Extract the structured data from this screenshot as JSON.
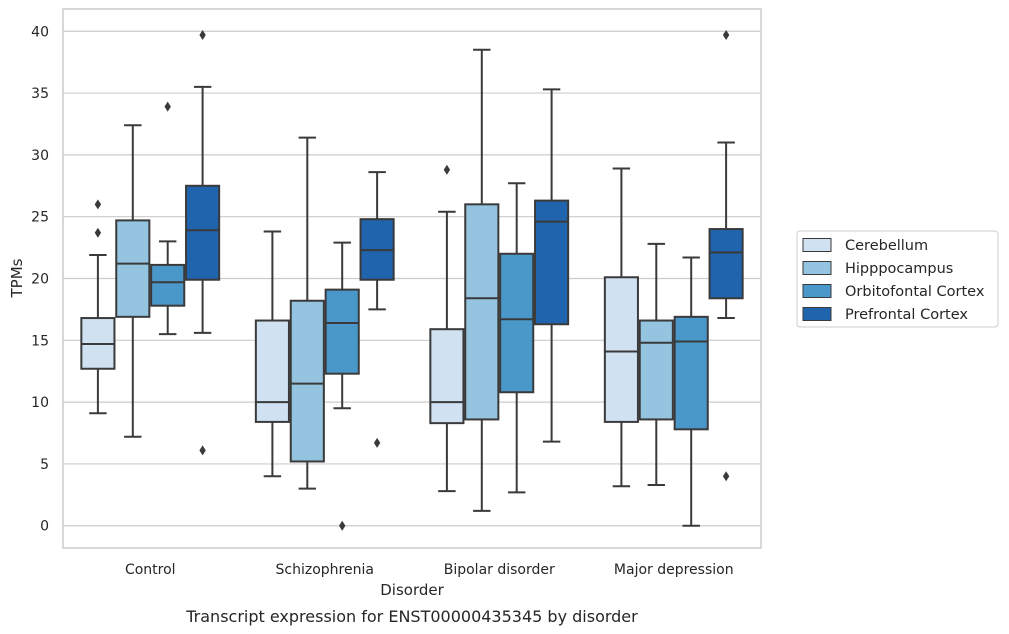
{
  "chart_data": {
    "type": "box",
    "xlabel": "Disorder",
    "ylabel": "TPMs",
    "caption": "Transcript expression for ENST00000435345 by disorder",
    "ylim": [
      -1.8,
      41.8
    ],
    "yticks": [
      0,
      5,
      10,
      15,
      20,
      25,
      30,
      35,
      40
    ],
    "grid": "horizontal",
    "legend_position": "right",
    "categories": [
      "Control",
      "Schizophrenia",
      "Bipolar disorder",
      "Major depression"
    ],
    "series": [
      {
        "name": "Cerebellum",
        "color": "#d0e1f2",
        "boxes": [
          {
            "whislo": 9.1,
            "q1": 12.7,
            "med": 14.7,
            "q3": 16.8,
            "whishi": 21.9,
            "fliers": [
              23.7,
              26.0
            ]
          },
          {
            "whislo": 4.0,
            "q1": 8.4,
            "med": 10.0,
            "q3": 16.6,
            "whishi": 23.8,
            "fliers": []
          },
          {
            "whislo": 2.8,
            "q1": 8.3,
            "med": 10.0,
            "q3": 15.9,
            "whishi": 25.4,
            "fliers": [
              28.8
            ]
          },
          {
            "whislo": 3.2,
            "q1": 8.4,
            "med": 14.1,
            "q3": 20.1,
            "whishi": 28.9,
            "fliers": []
          }
        ]
      },
      {
        "name": "Hipppocampus",
        "color": "#94c4df",
        "boxes": [
          {
            "whislo": 7.2,
            "q1": 16.9,
            "med": 21.2,
            "q3": 24.7,
            "whishi": 32.4,
            "fliers": []
          },
          {
            "whislo": 3.0,
            "q1": 5.2,
            "med": 11.5,
            "q3": 18.2,
            "whishi": 31.4,
            "fliers": []
          },
          {
            "whislo": 1.2,
            "q1": 8.6,
            "med": 18.4,
            "q3": 26.0,
            "whishi": 38.5,
            "fliers": []
          },
          {
            "whislo": 3.3,
            "q1": 8.6,
            "med": 14.8,
            "q3": 16.6,
            "whishi": 22.8,
            "fliers": []
          }
        ]
      },
      {
        "name": "Orbitofontal Cortex",
        "color": "#4a98c9",
        "boxes": [
          {
            "whislo": 15.5,
            "q1": 17.8,
            "med": 19.7,
            "q3": 21.1,
            "whishi": 23.0,
            "fliers": [
              33.9
            ]
          },
          {
            "whislo": 9.5,
            "q1": 12.3,
            "med": 16.4,
            "q3": 19.1,
            "whishi": 22.9,
            "fliers": [
              0.0
            ]
          },
          {
            "whislo": 2.7,
            "q1": 10.8,
            "med": 16.7,
            "q3": 22.0,
            "whishi": 27.7,
            "fliers": []
          },
          {
            "whislo": 0.0,
            "q1": 7.8,
            "med": 14.9,
            "q3": 16.9,
            "whishi": 21.7,
            "fliers": []
          }
        ]
      },
      {
        "name": "Prefrontal Cortex",
        "color": "#2064ae",
        "boxes": [
          {
            "whislo": 15.6,
            "q1": 19.9,
            "med": 23.9,
            "q3": 27.5,
            "whishi": 35.5,
            "fliers": [
              6.1,
              39.7
            ]
          },
          {
            "whislo": 17.5,
            "q1": 19.9,
            "med": 22.3,
            "q3": 24.8,
            "whishi": 28.6,
            "fliers": [
              6.7
            ]
          },
          {
            "whislo": 6.8,
            "q1": 16.3,
            "med": 24.6,
            "q3": 26.3,
            "whishi": 35.3,
            "fliers": []
          },
          {
            "whislo": 16.8,
            "q1": 18.4,
            "med": 22.1,
            "q3": 24.0,
            "whishi": 31.0,
            "fliers": [
              4.0,
              39.7
            ]
          }
        ]
      }
    ]
  }
}
